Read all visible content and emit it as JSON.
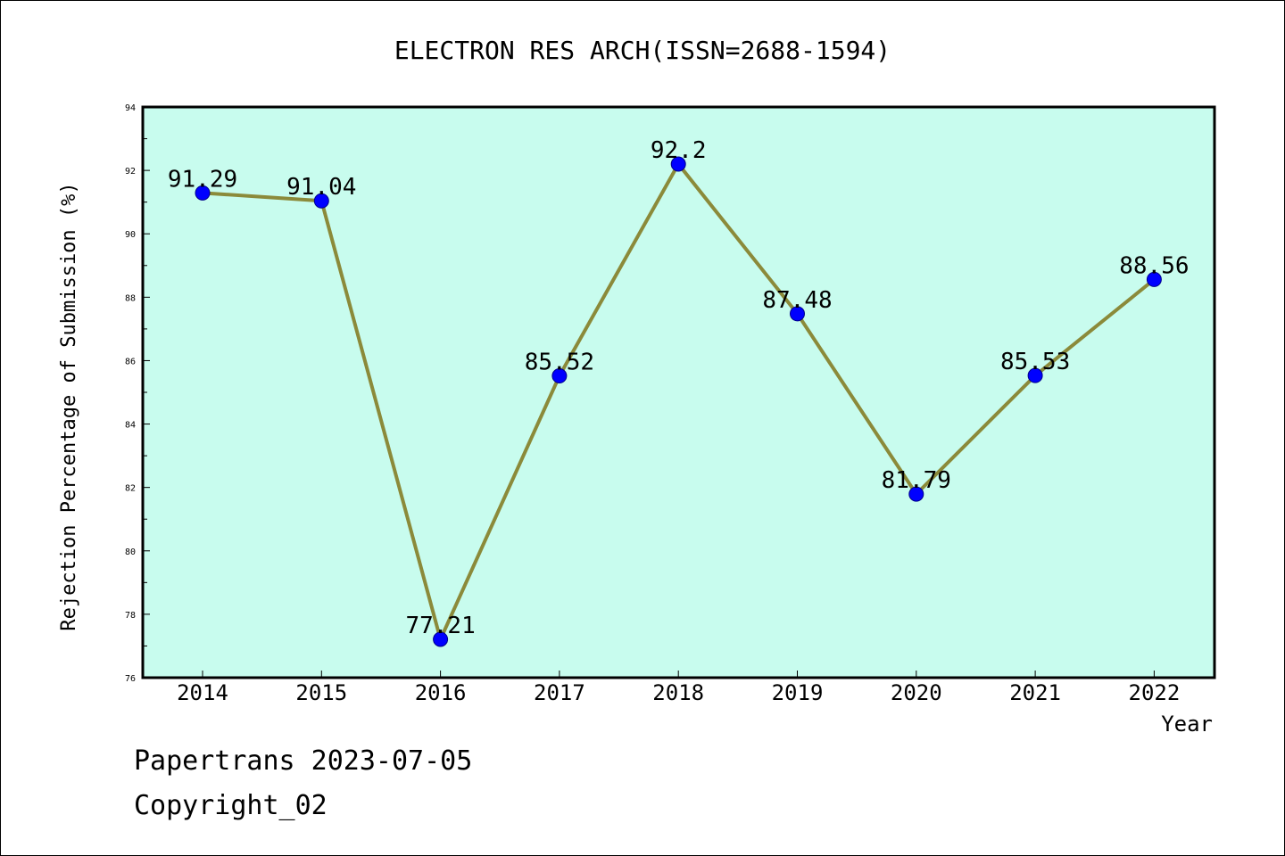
{
  "chart_data": {
    "type": "line",
    "title": "ELECTRON RES ARCH(ISSN=2688-1594)",
    "xlabel": "Year",
    "ylabel": "Rejection Percentage of Submission (%)",
    "categories": [
      "2014",
      "2015",
      "2016",
      "2017",
      "2018",
      "2019",
      "2020",
      "2021",
      "2022"
    ],
    "values": [
      91.29,
      91.04,
      77.21,
      85.52,
      92.2,
      87.48,
      81.79,
      85.53,
      88.56
    ],
    "data_labels": [
      "91.29",
      "91.04",
      "77.21",
      "85.52",
      "92.2",
      "87.48",
      "81.79",
      "85.53",
      "88.56"
    ],
    "ylim": [
      76,
      94
    ],
    "y_ticks": [
      "76",
      "78",
      "80",
      "82",
      "84",
      "86",
      "88",
      "90",
      "92",
      "94"
    ],
    "grid": false,
    "colors": {
      "plot_background": "#c8fcee",
      "line": "#8b8a3a",
      "marker": "#0000ff"
    }
  },
  "footer": {
    "source": "Papertrans 2023-07-05",
    "copyright": "Copyright_02"
  }
}
